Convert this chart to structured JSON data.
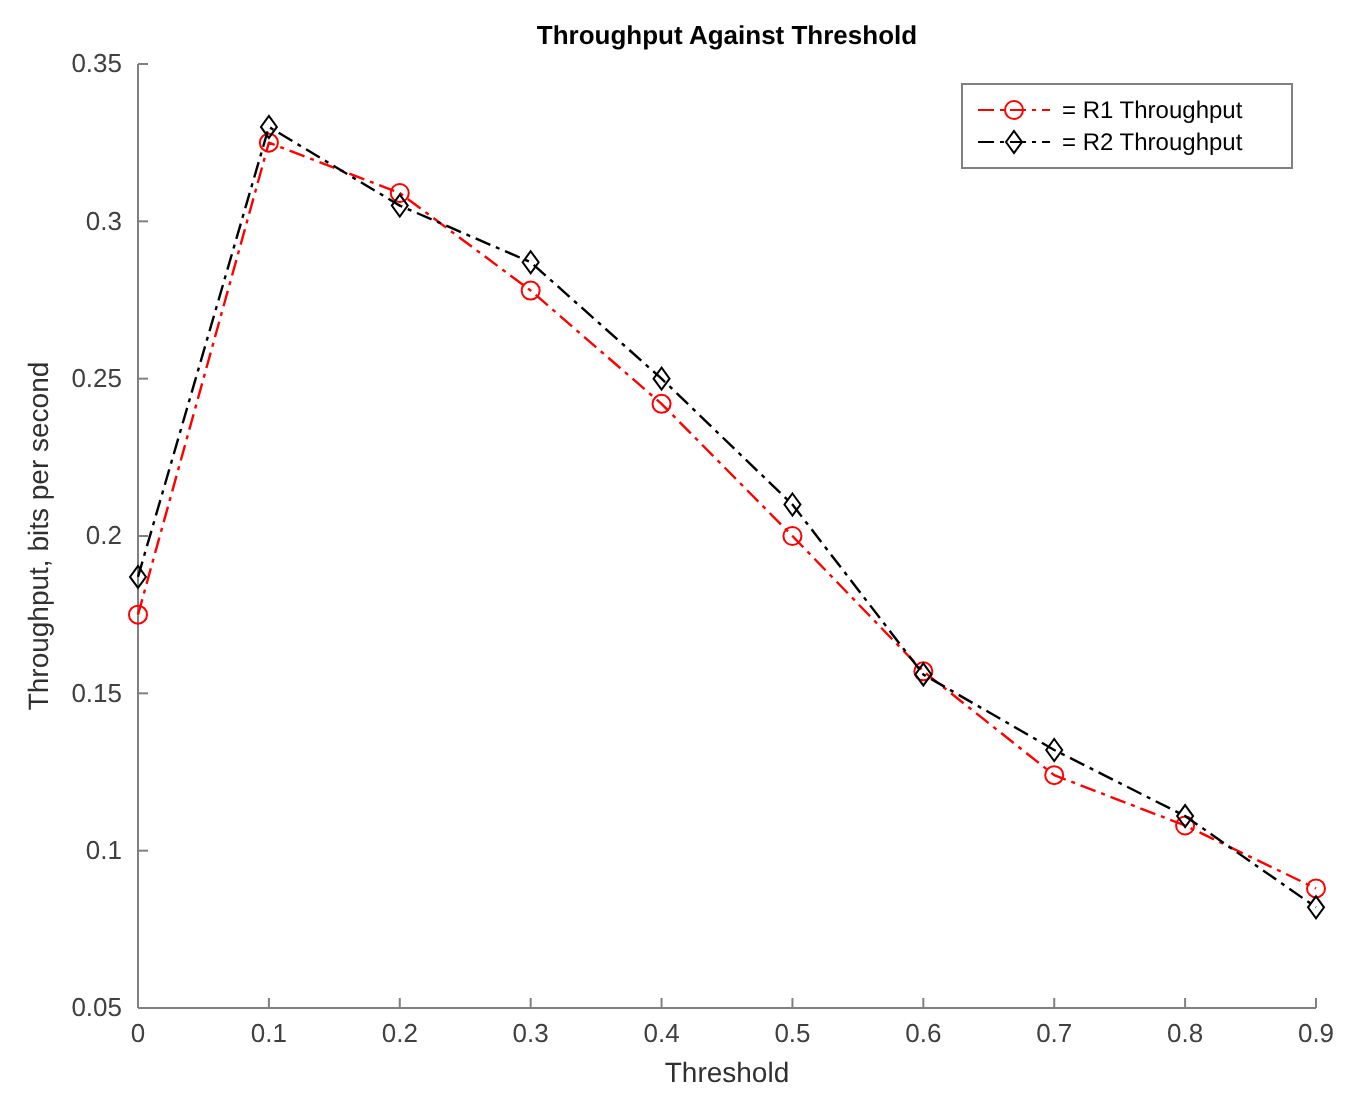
{
  "chart_data": {
    "type": "line",
    "title": "Throughput Against Threshold",
    "xlabel": "Threshold",
    "ylabel": "Throughput, bits per second",
    "x": [
      0,
      0.1,
      0.2,
      0.3,
      0.4,
      0.5,
      0.6,
      0.7,
      0.8,
      0.9
    ],
    "xlim": [
      0,
      0.9
    ],
    "xticks": [
      0,
      0.1,
      0.2,
      0.3,
      0.4,
      0.5,
      0.6,
      0.7,
      0.8,
      0.9
    ],
    "ylim": [
      0.05,
      0.35
    ],
    "yticks": [
      0.05,
      0.1,
      0.15,
      0.2,
      0.25,
      0.3,
      0.35
    ],
    "grid": false,
    "legend": "top right",
    "line_style": "dashed",
    "series": [
      {
        "name": "= R1 Throughput",
        "color": "#ff0000",
        "marker": "circle",
        "values": [
          0.175,
          0.325,
          0.309,
          0.278,
          0.242,
          0.2,
          0.157,
          0.124,
          0.108,
          0.088
        ]
      },
      {
        "name": "= R2 Throughput",
        "color": "#000000",
        "marker": "diamond",
        "values": [
          0.187,
          0.33,
          0.305,
          0.287,
          0.25,
          0.21,
          0.156,
          0.132,
          0.111,
          0.082
        ]
      }
    ]
  }
}
